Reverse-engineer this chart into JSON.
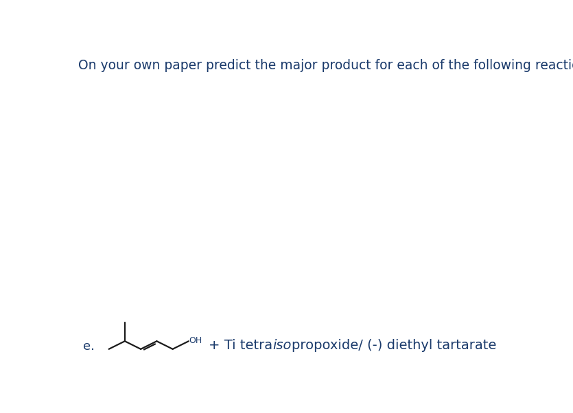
{
  "title": "On your own paper predict the major product for each of the following reactions.",
  "title_color": "#1a3a6b",
  "title_fontsize": 13.5,
  "label_e": "e.",
  "label_color": "#1a3a6b",
  "oh_label": "OH",
  "oh_color": "#1a3a6b",
  "structure_color": "#1a1a1a",
  "arrow_color": "#1a1a1a",
  "background_color": "#ffffff",
  "reagent_parts": [
    {
      "text": "+ Ti tetra",
      "italic": false
    },
    {
      "text": "iso",
      "italic": true
    },
    {
      "text": "propoxide/ (-) diethyl tartarate",
      "italic": false
    }
  ],
  "reagent_color": "#1a3a6b",
  "reagent_fontsize": 14,
  "figsize": [
    8.35,
    6.02
  ],
  "dpi": 100
}
